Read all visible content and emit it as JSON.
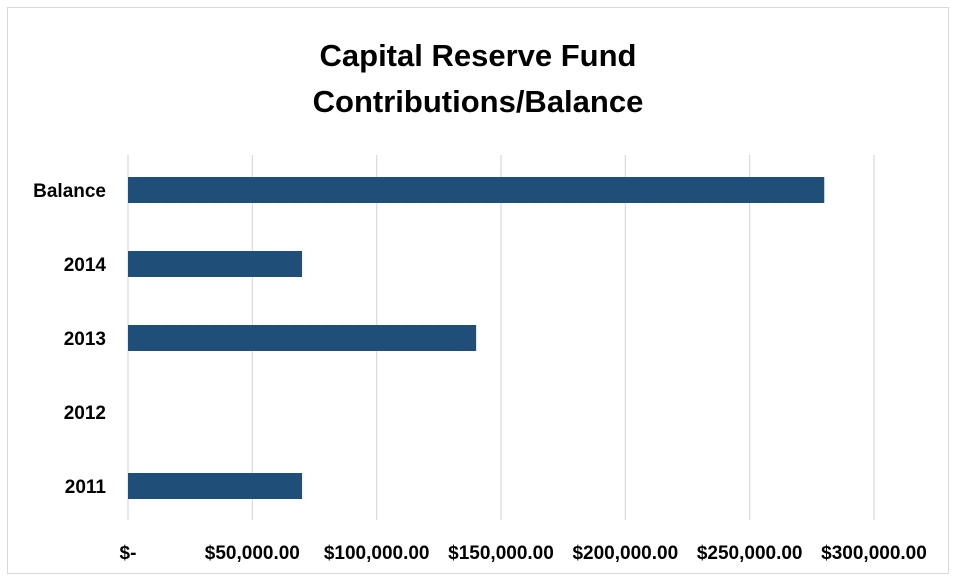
{
  "chart_data": {
    "type": "bar",
    "orientation": "horizontal",
    "title_lines": [
      "Capital Reserve Fund",
      "Contributions/Balance"
    ],
    "categories": [
      "2011",
      "2012",
      "2013",
      "2014",
      "Balance"
    ],
    "values": [
      70000,
      0,
      140000,
      70000,
      280000
    ],
    "xlim": [
      0,
      300000
    ],
    "tick_values": [
      0,
      50000,
      100000,
      150000,
      200000,
      250000,
      300000
    ],
    "tick_labels": [
      "$-",
      "$50,000.00",
      "$100,000.00",
      "$150,000.00",
      "$200,000.00",
      "$250,000.00",
      "$300,000.00"
    ],
    "grid": true,
    "legend": "none",
    "colors": {
      "bar": "#1f4e79",
      "grid": "#d9d9d9"
    }
  }
}
